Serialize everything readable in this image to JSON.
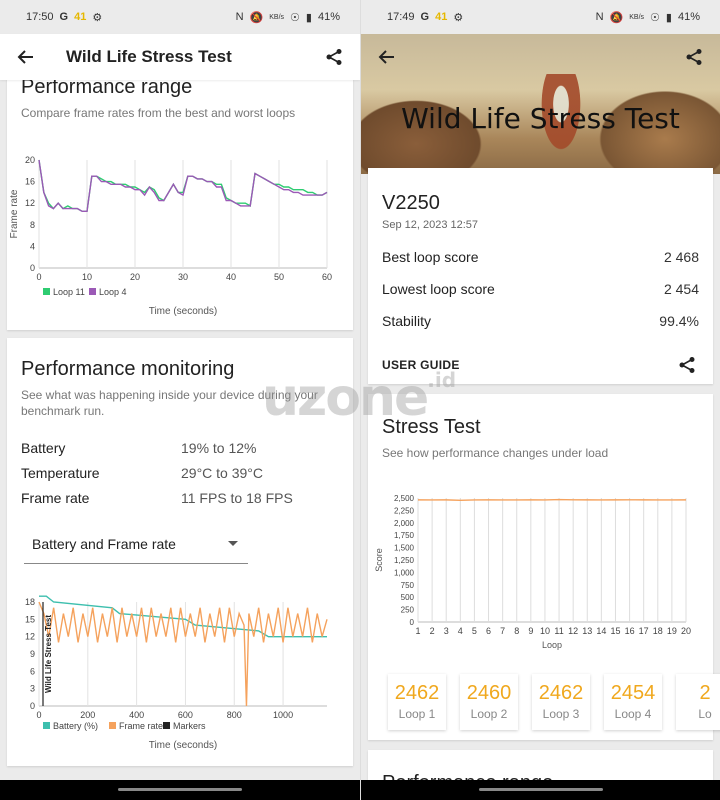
{
  "left": {
    "status": {
      "time": "17:50",
      "g": "G",
      "badge": "41",
      "battery": "41%",
      "net": "KB/s"
    },
    "appbar_title": "Wild Life Stress Test",
    "range_card": {
      "title": "Performance range",
      "subtitle": "Compare frame rates from the best and worst loops",
      "ylabel": "Frame rate",
      "xlabel": "Time (seconds)",
      "legend": [
        "Loop 11",
        "Loop 4"
      ]
    },
    "monitor_card": {
      "title": "Performance monitoring",
      "subtitle": "See what was happening inside your device during your benchmark run.",
      "rows": [
        {
          "k": "Battery",
          "v": "19% to 12%"
        },
        {
          "k": "Temperature",
          "v": "29°C to 39°C"
        },
        {
          "k": "Frame rate",
          "v": "11 FPS to 18 FPS"
        }
      ],
      "dropdown": "Battery and Frame rate",
      "marker_label": "Wild Life Stress Test",
      "legend": [
        "Battery (%)",
        "Frame rate",
        "Markers"
      ],
      "xlabel": "Time (seconds)"
    }
  },
  "right": {
    "status": {
      "time": "17:49",
      "g": "G",
      "badge": "41",
      "battery": "41%",
      "net": "KB/s"
    },
    "hero_title": "Wild Life Stress Test",
    "device_card": {
      "device": "V2250",
      "date": "Sep 12, 2023 12:57",
      "rows": [
        {
          "k": "Best loop score",
          "v": "2 468"
        },
        {
          "k": "Lowest loop score",
          "v": "2 454"
        },
        {
          "k": "Stability",
          "v": "99.4%"
        }
      ],
      "user_guide": "USER GUIDE"
    },
    "stress_card": {
      "title": "Stress Test",
      "subtitle": "See how performance changes under load",
      "ylabel": "Score",
      "xlabel": "Loop",
      "loops": [
        {
          "score": "2462",
          "label": "Loop 1"
        },
        {
          "score": "2460",
          "label": "Loop 2"
        },
        {
          "score": "2462",
          "label": "Loop 3"
        },
        {
          "score": "2454",
          "label": "Loop 4"
        },
        {
          "score": "2",
          "label": "Lo"
        }
      ]
    },
    "next_card_title": "Performance range"
  },
  "watermark": {
    "text": "uzone",
    "suffix": ".id"
  },
  "colors": {
    "accent": "#f0a81e",
    "teal": "#3dbfae",
    "purple": "#9b59b6",
    "orange": "#f5a25d",
    "green": "#2ecc71"
  },
  "chart_data": [
    {
      "type": "line",
      "xlabel": "Time (seconds)",
      "ylabel": "Frame rate",
      "xlim": [
        0,
        60
      ],
      "ylim": [
        0,
        20
      ],
      "xticks": [
        0,
        10,
        20,
        30,
        40,
        50,
        60
      ],
      "yticks": [
        0,
        4,
        8,
        12,
        16,
        20
      ],
      "series": [
        {
          "name": "Loop 11",
          "x": [
            0,
            1,
            2,
            3,
            4,
            5,
            6,
            7,
            8,
            9,
            10,
            11,
            12,
            13,
            14,
            15,
            16,
            17,
            18,
            19,
            20,
            21,
            22,
            23,
            24,
            25,
            26,
            27,
            28,
            29,
            30,
            31,
            32,
            33,
            34,
            35,
            36,
            37,
            38,
            39,
            40,
            41,
            42,
            43,
            44,
            45,
            46,
            47,
            48,
            49,
            50,
            51,
            52,
            53,
            54,
            55,
            56,
            57,
            58,
            59,
            60
          ],
          "values": [
            20,
            14,
            12,
            11,
            12,
            11,
            11.5,
            11,
            11,
            10.5,
            10.5,
            17,
            17,
            16.5,
            16,
            16,
            15.5,
            15.5,
            15.5,
            15,
            15,
            14.5,
            14,
            15,
            14.5,
            13,
            12.5,
            14,
            15.5,
            14,
            14,
            17,
            17,
            16.5,
            16.5,
            16,
            16,
            15.5,
            15.5,
            13,
            12.5,
            12,
            12,
            12,
            11.5,
            17.5,
            17,
            16.5,
            16,
            15.5,
            15.5,
            15,
            15,
            14.5,
            14.5,
            14.5,
            14,
            14,
            13.5,
            13.5,
            14
          ]
        },
        {
          "name": "Loop 4",
          "x": [
            0,
            1,
            2,
            3,
            4,
            5,
            6,
            7,
            8,
            9,
            10,
            11,
            12,
            13,
            14,
            15,
            16,
            17,
            18,
            19,
            20,
            21,
            22,
            23,
            24,
            25,
            26,
            27,
            28,
            29,
            30,
            31,
            32,
            33,
            34,
            35,
            36,
            37,
            38,
            39,
            40,
            41,
            42,
            43,
            44,
            45,
            46,
            47,
            48,
            49,
            50,
            51,
            52,
            53,
            54,
            55,
            56,
            57,
            58,
            59,
            60
          ],
          "values": [
            20,
            14,
            11.5,
            11,
            12,
            11,
            11,
            11,
            11,
            10.5,
            10.5,
            17,
            17,
            16,
            16,
            15.5,
            15.5,
            15.5,
            15,
            15,
            14.5,
            14.5,
            13.5,
            15,
            14,
            12.5,
            12.5,
            14,
            15.5,
            14,
            13.5,
            17,
            17,
            16.5,
            16.5,
            16,
            16,
            15,
            15,
            12.5,
            12.5,
            12,
            11.5,
            11.5,
            11.5,
            17.5,
            17,
            16.5,
            16,
            15.5,
            15,
            14.5,
            14.5,
            14,
            14,
            13.5,
            13.5,
            13.5,
            13.5,
            13.5,
            14
          ]
        }
      ]
    },
    {
      "type": "line",
      "xlabel": "Time (seconds)",
      "xlim": [
        0,
        1180
      ],
      "ylim": [
        0,
        18
      ],
      "xticks": [
        0,
        200,
        400,
        600,
        800,
        1000
      ],
      "yticks": [
        0,
        3,
        6,
        9,
        12,
        15,
        18
      ],
      "series": [
        {
          "name": "Battery (%)",
          "x": [
            0,
            30,
            60,
            300,
            330,
            600,
            640,
            900,
            940,
            1180
          ],
          "values": [
            19,
            19,
            18,
            17,
            16,
            15,
            14,
            13,
            12,
            12
          ]
        },
        {
          "name": "Frame rate",
          "x": [
            0,
            20,
            40,
            60,
            80,
            100,
            120,
            140,
            160,
            180,
            200,
            220,
            240,
            260,
            280,
            300,
            320,
            340,
            360,
            380,
            400,
            420,
            440,
            460,
            480,
            500,
            520,
            540,
            560,
            580,
            600,
            620,
            640,
            660,
            680,
            700,
            720,
            740,
            760,
            780,
            800,
            820,
            840,
            850,
            860,
            880,
            900,
            920,
            940,
            960,
            980,
            1000,
            1020,
            1040,
            1060,
            1080,
            1100,
            1120,
            1140,
            1160,
            1180
          ],
          "values": [
            18,
            16,
            12,
            17,
            11,
            16,
            12,
            17,
            11,
            16,
            12,
            17,
            11,
            16,
            12,
            17,
            11,
            17,
            12,
            16,
            12,
            17,
            11,
            17,
            12,
            16,
            12,
            17,
            11,
            17,
            12,
            16,
            12,
            17,
            11,
            16,
            12,
            17,
            11,
            17,
            12,
            16,
            14,
            0,
            16,
            12,
            17,
            11,
            16,
            12,
            17,
            11,
            17,
            12,
            16,
            12,
            17,
            11,
            16,
            12,
            15
          ]
        },
        {
          "name": "Markers",
          "x": [
            0
          ],
          "values": [
            0
          ]
        }
      ]
    },
    {
      "type": "line",
      "xlabel": "Loop",
      "ylabel": "Score",
      "xlim": [
        1,
        20
      ],
      "ylim": [
        0,
        2500
      ],
      "xticks": [
        1,
        2,
        3,
        4,
        5,
        6,
        7,
        8,
        9,
        10,
        11,
        12,
        13,
        14,
        15,
        16,
        17,
        18,
        19,
        20
      ],
      "yticks": [
        0,
        250,
        500,
        750,
        1000,
        1250,
        1500,
        1750,
        2000,
        2250,
        2500
      ],
      "ytick_labels": [
        "0",
        "250",
        "500",
        "750",
        "1,000",
        "1,250",
        "1,500",
        "1,750",
        "2,000",
        "2,250",
        "2,500"
      ],
      "series": [
        {
          "name": "Score",
          "x": [
            1,
            2,
            3,
            4,
            5,
            6,
            7,
            8,
            9,
            10,
            11,
            12,
            13,
            14,
            15,
            16,
            17,
            18,
            19,
            20
          ],
          "values": [
            2462,
            2460,
            2462,
            2454,
            2460,
            2462,
            2460,
            2461,
            2462,
            2460,
            2468,
            2464,
            2462,
            2461,
            2462,
            2463,
            2462,
            2460,
            2461,
            2462
          ]
        }
      ]
    }
  ]
}
